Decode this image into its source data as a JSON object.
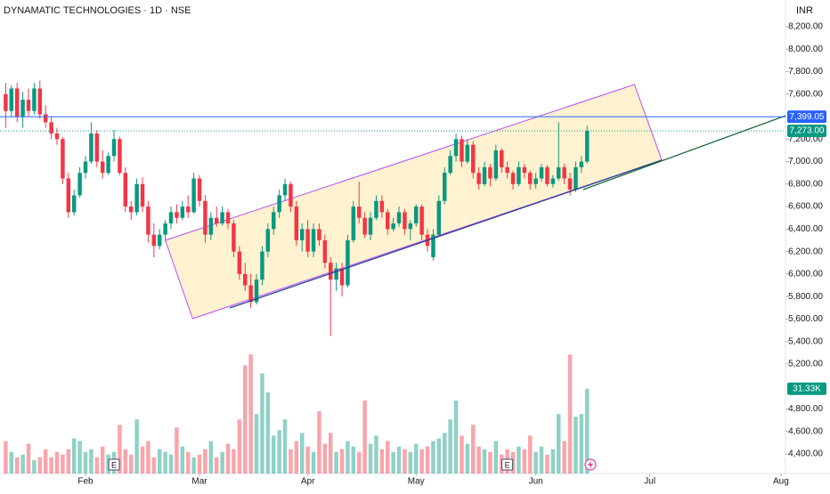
{
  "chart_data": {
    "type": "candlestick",
    "title": "DYNAMATIC TECHNOLOGIES · 1D · NSE",
    "currency": "INR",
    "up_color": "#089981",
    "down_color": "#f23645",
    "xlim": [
      -1,
      136.8
    ],
    "xticks": [
      {
        "value": 14,
        "label": "Feb"
      },
      {
        "value": 34,
        "label": "Mar"
      },
      {
        "value": 53,
        "label": "Apr"
      },
      {
        "value": 72,
        "label": "May"
      },
      {
        "value": 93,
        "label": "Jun"
      },
      {
        "value": 113,
        "label": "Jul"
      },
      {
        "value": 136,
        "label": "Aug"
      }
    ],
    "ylim": [
      4226,
      8437
    ],
    "yticks": [
      {
        "value": 8200,
        "label": "8,200.00"
      },
      {
        "value": 8000,
        "label": "8,000.00"
      },
      {
        "value": 7800,
        "label": "7,800.00"
      },
      {
        "value": 7600,
        "label": "7,600.00"
      },
      {
        "value": 7200,
        "label": "7,200.00"
      },
      {
        "value": 7000,
        "label": "7,000.00"
      },
      {
        "value": 6800,
        "label": "6,800.00"
      },
      {
        "value": 6600,
        "label": "6,600.00"
      },
      {
        "value": 6400,
        "label": "6,400.00"
      },
      {
        "value": 6200,
        "label": "6,200.00"
      },
      {
        "value": 6000,
        "label": "6,000.00"
      },
      {
        "value": 5800,
        "label": "5,800.00"
      },
      {
        "value": 5600,
        "label": "5,600.00"
      },
      {
        "value": 5400,
        "label": "5,400.00"
      },
      {
        "value": 5200,
        "label": "5,200.00"
      },
      {
        "value": 4800,
        "label": "4,800.00"
      },
      {
        "value": 4600,
        "label": "4,600.00"
      },
      {
        "value": 4400,
        "label": "4,400.00"
      }
    ],
    "grid": false,
    "ohlc": [
      [
        7600,
        7700,
        7300,
        7450
      ],
      [
        7450,
        7680,
        7400,
        7650
      ],
      [
        7650,
        7700,
        7350,
        7400
      ],
      [
        7400,
        7620,
        7300,
        7550
      ],
      [
        7550,
        7650,
        7400,
        7450
      ],
      [
        7450,
        7700,
        7420,
        7650
      ],
      [
        7650,
        7720,
        7380,
        7420
      ],
      [
        7420,
        7500,
        7300,
        7350
      ],
      [
        7350,
        7400,
        7200,
        7250
      ],
      [
        7250,
        7300,
        7150,
        7200
      ],
      [
        7200,
        7220,
        6800,
        6850
      ],
      [
        6850,
        6900,
        6500,
        6550
      ],
      [
        6550,
        6750,
        6520,
        6700
      ],
      [
        6700,
        6950,
        6680,
        6900
      ],
      [
        6900,
        7050,
        6850,
        7000
      ],
      [
        7000,
        7350,
        6980,
        7250
      ],
      [
        7250,
        7280,
        6950,
        7000
      ],
      [
        7000,
        7100,
        6850,
        6900
      ],
      [
        6900,
        7080,
        6880,
        7050
      ],
      [
        7050,
        7280,
        7000,
        7200
      ],
      [
        7200,
        7220,
        6880,
        6900
      ],
      [
        6900,
        6950,
        6550,
        6600
      ],
      [
        6600,
        6650,
        6480,
        6550
      ],
      [
        6550,
        6850,
        6520,
        6800
      ],
      [
        6800,
        6860,
        6550,
        6600
      ],
      [
        6600,
        6650,
        6280,
        6350
      ],
      [
        6350,
        6450,
        6150,
        6250
      ],
      [
        6250,
        6400,
        6220,
        6350
      ],
      [
        6350,
        6480,
        6300,
        6450
      ],
      [
        6450,
        6600,
        6400,
        6550
      ],
      [
        6550,
        6620,
        6450,
        6500
      ],
      [
        6500,
        6650,
        6480,
        6600
      ],
      [
        6600,
        6700,
        6500,
        6550
      ],
      [
        6550,
        6900,
        6540,
        6850
      ],
      [
        6850,
        6880,
        6600,
        6650
      ],
      [
        6650,
        6700,
        6280,
        6350
      ],
      [
        6350,
        6550,
        6300,
        6500
      ],
      [
        6500,
        6600,
        6420,
        6450
      ],
      [
        6450,
        6600,
        6430,
        6550
      ],
      [
        6550,
        6580,
        6400,
        6450
      ],
      [
        6450,
        6480,
        6150,
        6200
      ],
      [
        6200,
        6250,
        5950,
        6000
      ],
      [
        6000,
        6100,
        5850,
        5900
      ],
      [
        5900,
        6000,
        5700,
        5750
      ],
      [
        5750,
        6000,
        5730,
        5950
      ],
      [
        5950,
        6250,
        5900,
        6200
      ],
      [
        6200,
        6450,
        6150,
        6400
      ],
      [
        6400,
        6600,
        6350,
        6550
      ],
      [
        6550,
        6750,
        6500,
        6700
      ],
      [
        6700,
        6850,
        6650,
        6800
      ],
      [
        6800,
        6820,
        6550,
        6600
      ],
      [
        6600,
        6650,
        6250,
        6300
      ],
      [
        6300,
        6450,
        6200,
        6400
      ],
      [
        6400,
        6480,
        6150,
        6200
      ],
      [
        6200,
        6450,
        6150,
        6400
      ],
      [
        6400,
        6450,
        6250,
        6300
      ],
      [
        6300,
        6350,
        6050,
        6100
      ],
      [
        6100,
        6150,
        5450,
        5950
      ],
      [
        5950,
        6100,
        5850,
        6050
      ],
      [
        6050,
        6100,
        5800,
        5900
      ],
      [
        5900,
        6350,
        5880,
        6300
      ],
      [
        6300,
        6650,
        6280,
        6600
      ],
      [
        6600,
        6820,
        6450,
        6500
      ],
      [
        6500,
        6550,
        6320,
        6350
      ],
      [
        6350,
        6550,
        6300,
        6500
      ],
      [
        6500,
        6700,
        6480,
        6650
      ],
      [
        6650,
        6700,
        6500,
        6550
      ],
      [
        6550,
        6580,
        6350,
        6400
      ],
      [
        6400,
        6500,
        6380,
        6450
      ],
      [
        6450,
        6600,
        6420,
        6550
      ],
      [
        6550,
        6580,
        6350,
        6400
      ],
      [
        6400,
        6480,
        6300,
        6450
      ],
      [
        6450,
        6620,
        6420,
        6600
      ],
      [
        6600,
        6620,
        6300,
        6350
      ],
      [
        6350,
        6400,
        6200,
        6250
      ],
      [
        6150,
        6400,
        6120,
        6350
      ],
      [
        6350,
        6700,
        6340,
        6650
      ],
      [
        6650,
        6950,
        6620,
        6900
      ],
      [
        6900,
        7100,
        6880,
        7050
      ],
      [
        7050,
        7250,
        7000,
        7200
      ],
      [
        7200,
        7230,
        6950,
        7000
      ],
      [
        7000,
        7200,
        6980,
        7150
      ],
      [
        7150,
        7180,
        6850,
        6900
      ],
      [
        6900,
        6950,
        6750,
        6800
      ],
      [
        6800,
        7000,
        6780,
        6950
      ],
      [
        6950,
        6980,
        6780,
        6850
      ],
      [
        6850,
        7150,
        6830,
        7100
      ],
      [
        7100,
        7120,
        6900,
        6950
      ],
      [
        6950,
        7000,
        6850,
        6900
      ],
      [
        6900,
        6920,
        6750,
        6800
      ],
      [
        6800,
        7000,
        6780,
        6950
      ],
      [
        6950,
        6980,
        6850,
        6900
      ],
      [
        6900,
        6920,
        6750,
        6800
      ],
      [
        6800,
        6900,
        6760,
        6850
      ],
      [
        6850,
        6980,
        6820,
        6950
      ],
      [
        6950,
        6970,
        6780,
        6800
      ],
      [
        6800,
        6880,
        6770,
        6850
      ],
      [
        6850,
        7350,
        6830,
        6950
      ],
      [
        6950,
        6980,
        6800,
        6850
      ],
      [
        6850,
        6900,
        6700,
        6750
      ],
      [
        6750,
        7000,
        6730,
        6950
      ],
      [
        6950,
        7050,
        6900,
        7000
      ],
      [
        7000,
        7320,
        6980,
        7273
      ]
    ],
    "volume": [
      12,
      8,
      6,
      7,
      11,
      5,
      6,
      9,
      6,
      8,
      7,
      9,
      13,
      12,
      8,
      9,
      6,
      10,
      7,
      8,
      18,
      9,
      7,
      20,
      10,
      12,
      6,
      9,
      8,
      7,
      17,
      10,
      8,
      6,
      7,
      9,
      12,
      6,
      8,
      11,
      9,
      20,
      40,
      44,
      22,
      37,
      30,
      14,
      16,
      20,
      9,
      12,
      15,
      10,
      8,
      23,
      11,
      15,
      8,
      9,
      12,
      10,
      8,
      27,
      11,
      14,
      9,
      12,
      8,
      10,
      9,
      8,
      11,
      9,
      10,
      12,
      13,
      15,
      20,
      27,
      14,
      11,
      18,
      10,
      9,
      8,
      12,
      7,
      9,
      8,
      10,
      9,
      14,
      8,
      10,
      7,
      9,
      22,
      12,
      44,
      21,
      22,
      31.33
    ],
    "volume_ylim": [
      0,
      175
    ],
    "volume_last_label": "31.33K",
    "events": [
      {
        "index": 19,
        "label": "E"
      },
      {
        "index": 88,
        "label": "E"
      }
    ],
    "hline": {
      "value": 7399.05,
      "label": "7,399.05",
      "color": "#2962ff"
    },
    "last_price": {
      "value": 7273,
      "label": "7,273.00",
      "color": "#089981"
    },
    "channel": {
      "x": [
        28,
        110.3,
        115.1,
        32.8
      ],
      "y": [
        6300,
        7685,
        7013,
        5603
      ],
      "color": "#b84cf0",
      "fill": "#fff0c8"
    },
    "trendlines": [
      {
        "x": [
          39.3,
          115.1
        ],
        "y": [
          5698,
          7013
        ],
        "color": "#2a3f8f"
      },
      {
        "x": [
          101.3,
          136.8
        ],
        "y": [
          6751,
          7408
        ],
        "color": "#1b6b3a"
      }
    ]
  }
}
